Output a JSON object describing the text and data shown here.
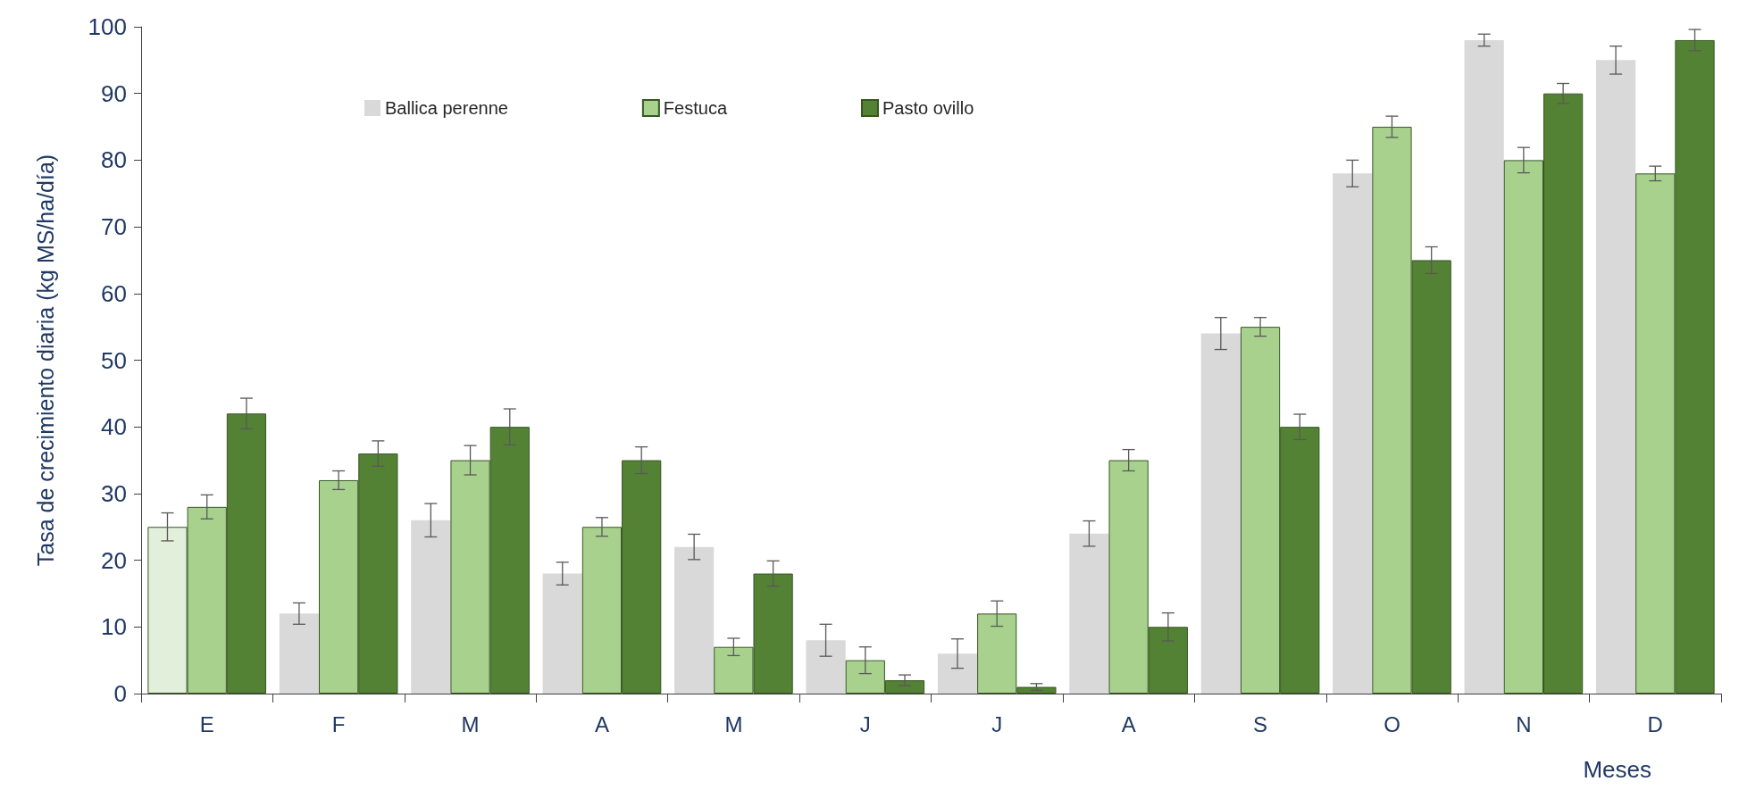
{
  "chart_data": {
    "type": "bar",
    "xlabel": "Meses",
    "ylabel": "Tasa de crecimiento diaria (kg MS/ha/día)",
    "categories": [
      "E",
      "F",
      "M",
      "A",
      "M",
      "J",
      "J",
      "A",
      "S",
      "O",
      "N",
      "D"
    ],
    "series": [
      {
        "name": "Ballica perenne",
        "color": "#d9d9d9",
        "colors": [
          "#e2efda",
          "#d9d9d9",
          "#d9d9d9",
          "#d9d9d9",
          "#d9d9d9",
          "#d9d9d9",
          "#d9d9d9",
          "#d9d9d9",
          "#d9d9d9",
          "#d9d9d9",
          "#d9d9d9",
          "#d9d9d9"
        ],
        "values": [
          25,
          12,
          26,
          18,
          22,
          8,
          6,
          24,
          54,
          78,
          98,
          95
        ],
        "errors": [
          2.1,
          1.6,
          2.5,
          1.7,
          1.9,
          2.4,
          2.2,
          1.9,
          2.4,
          2.0,
          0.9,
          2.1
        ]
      },
      {
        "name": "Festuca",
        "color": "#a9d18e",
        "values": [
          28,
          32,
          35,
          25,
          7,
          5,
          12,
          35,
          55,
          85,
          80,
          78
        ],
        "errors": [
          1.8,
          1.4,
          2.2,
          1.4,
          1.3,
          2.0,
          1.9,
          1.6,
          1.4,
          1.6,
          1.9,
          1.1
        ]
      },
      {
        "name": "Pasto ovillo",
        "color": "#548235",
        "values": [
          42,
          36,
          40,
          35,
          18,
          2,
          1,
          10,
          40,
          65,
          90,
          98
        ],
        "errors": [
          2.3,
          1.9,
          2.7,
          2.0,
          1.9,
          0.8,
          0.5,
          2.1,
          1.9,
          2.0,
          1.5,
          1.6
        ]
      }
    ],
    "ylim": [
      0,
      100
    ],
    "yticks": [
      0,
      10,
      20,
      30,
      40,
      50,
      60,
      70,
      80,
      90,
      100
    ],
    "grid": false,
    "legend": "top"
  }
}
